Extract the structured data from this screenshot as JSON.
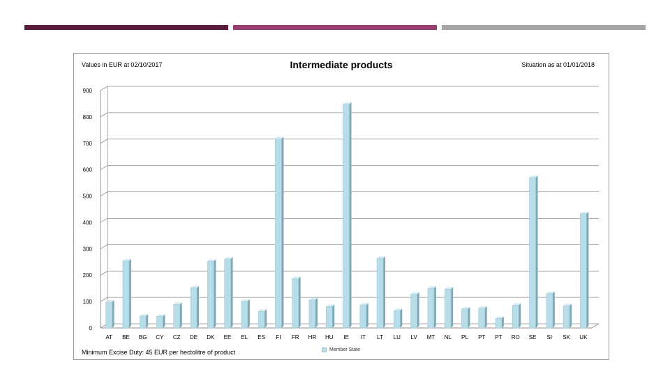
{
  "slide": {
    "decor_colors": [
      "#5a1a3c",
      "#9b3c73",
      "#a5a5a5"
    ]
  },
  "chart_data": {
    "type": "bar",
    "title": "Intermediate products",
    "header_left": "Values in EUR at 02/10/2017",
    "header_right": "Situation as at 01/01/2018",
    "footnote": "Minimum Excise Duty: 45 EUR per hectolitre of product",
    "legend": [
      "Member State"
    ],
    "xlabel": "",
    "ylabel": "",
    "ylim": [
      0,
      900
    ],
    "yticks": [
      0,
      100,
      200,
      300,
      400,
      500,
      600,
      700,
      800,
      900
    ],
    "grid": true,
    "bar_color": "#b7dde8",
    "categories": [
      "AT",
      "BE",
      "BG",
      "CY",
      "CZ",
      "DE",
      "DK",
      "EE",
      "EL",
      "ES",
      "FI",
      "FR",
      "HR",
      "HU",
      "IE",
      "IT",
      "LT",
      "LU",
      "LV",
      "MT",
      "NL",
      "PL",
      "PT",
      "PT",
      "RO",
      "SE",
      "SI",
      "SK",
      "UK"
    ],
    "values": [
      98,
      254,
      45,
      44,
      89,
      152,
      252,
      261,
      101,
      63,
      717,
      187,
      106,
      81,
      848,
      87,
      264,
      66,
      128,
      150,
      147,
      72,
      75,
      36,
      86,
      570,
      130,
      84,
      433
    ]
  }
}
